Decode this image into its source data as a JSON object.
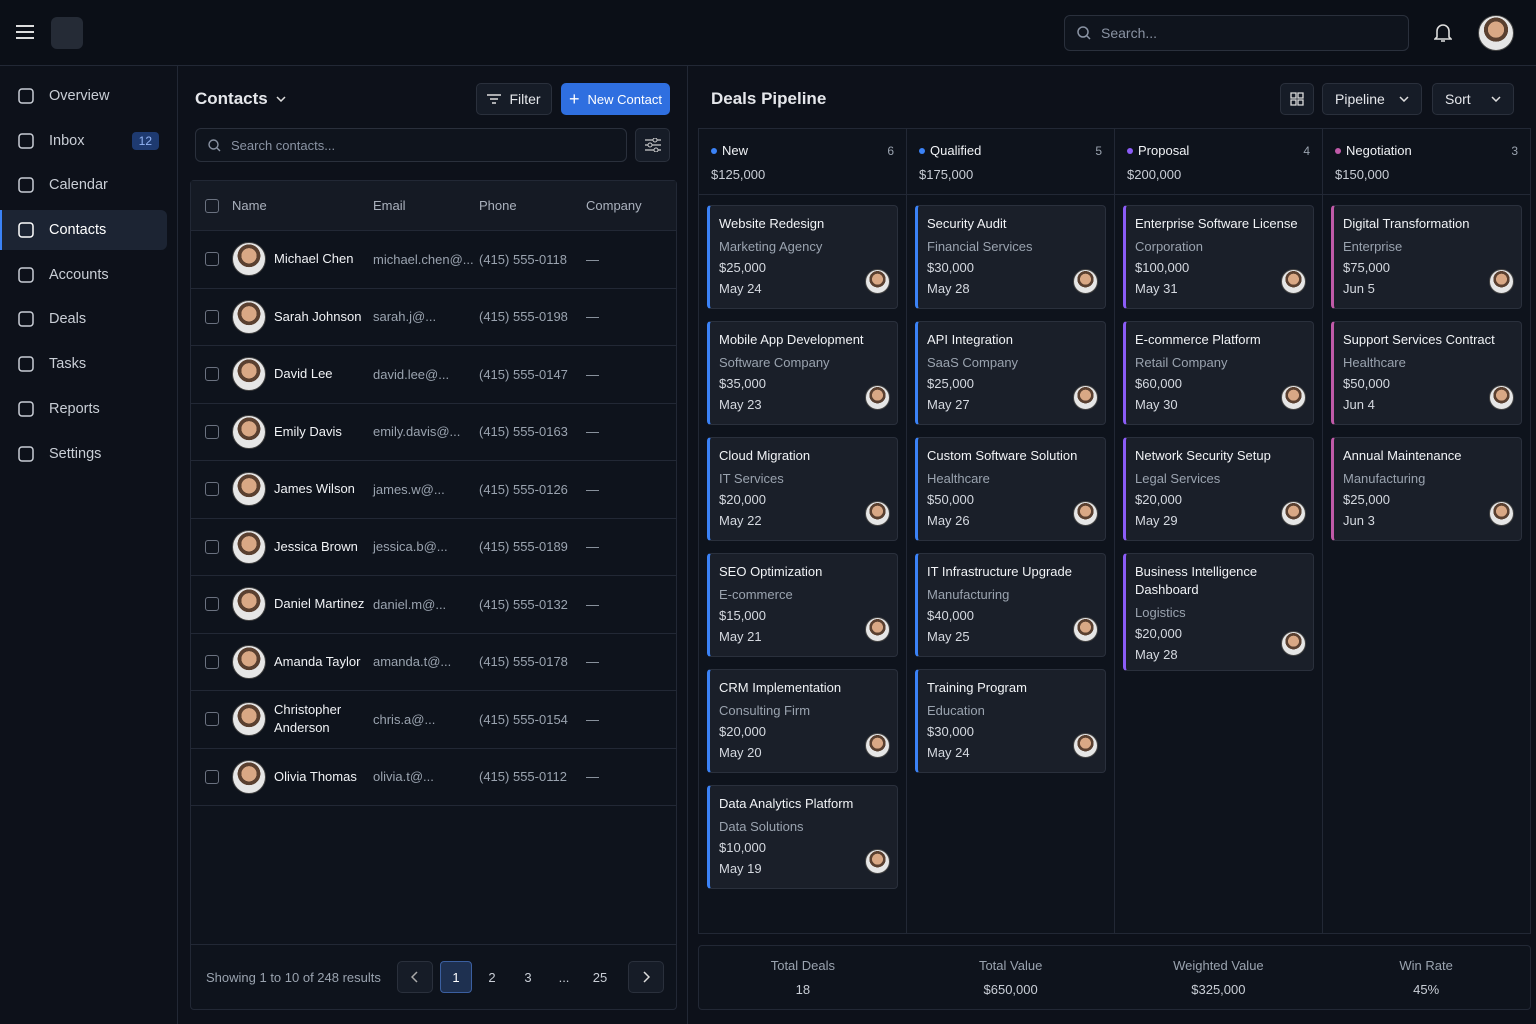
{
  "header": {
    "search_placeholder": "Search..."
  },
  "sidebar": {
    "items": [
      {
        "label": "Overview"
      },
      {
        "label": "Inbox",
        "badge": "12"
      },
      {
        "label": "Calendar"
      },
      {
        "label": "Contacts",
        "active": true
      },
      {
        "label": "Accounts"
      },
      {
        "label": "Deals"
      },
      {
        "label": "Tasks"
      },
      {
        "label": "Reports"
      },
      {
        "label": "Settings"
      }
    ]
  },
  "contacts": {
    "title": "Contacts",
    "filter": "Filter",
    "new_button": "New Contact",
    "search_placeholder": "Search contacts...",
    "columns": [
      "Name",
      "Email",
      "Phone",
      "Company"
    ],
    "rows": [
      [
        "Michael Chen",
        "michael.chen@...",
        "(415) 555-0118",
        "—"
      ],
      [
        "Sarah Johnson",
        "sarah.j@...",
        "(415) 555-0198",
        "—"
      ],
      [
        "David Lee",
        "david.lee@...",
        "(415) 555-0147",
        "—"
      ],
      [
        "Emily Davis",
        "emily.davis@...",
        "(415) 555-0163",
        "—"
      ],
      [
        "James Wilson",
        "james.w@...",
        "(415) 555-0126",
        "—"
      ],
      [
        "Jessica Brown",
        "jessica.b@...",
        "(415) 555-0189",
        "—"
      ],
      [
        "Daniel Martinez",
        "daniel.m@...",
        "(415) 555-0132",
        "—"
      ],
      [
        "Amanda Taylor",
        "amanda.t@...",
        "(415) 555-0178",
        "—"
      ],
      [
        "Christopher Anderson",
        "chris.a@...",
        "(415) 555-0154",
        "—"
      ],
      [
        "Olivia Thomas",
        "olivia.t@...",
        "(415) 555-0112",
        "—"
      ]
    ],
    "footer": "Showing 1 to 10 of 248 results",
    "pages": [
      "1",
      "2",
      "3",
      "...",
      "25"
    ],
    "current_page": "1"
  },
  "deals": {
    "title": "Deals Pipeline",
    "view": "Pipeline",
    "sort": "Sort",
    "columns": [
      {
        "name": "New",
        "count": 6,
        "total": "$125,000",
        "color": "#3b82f6",
        "cards": [
          {
            "title": "Website Redesign",
            "company": "Marketing Agency",
            "value": "$25,000",
            "date": "May 24"
          },
          {
            "title": "Mobile App Development",
            "company": "Software Company",
            "value": "$35,000",
            "date": "May 23"
          },
          {
            "title": "Cloud Migration",
            "company": "IT Services",
            "value": "$20,000",
            "date": "May 22"
          },
          {
            "title": "SEO Optimization",
            "company": "E-commerce",
            "value": "$15,000",
            "date": "May 21"
          },
          {
            "title": "CRM Implementation",
            "company": "Consulting Firm",
            "value": "$20,000",
            "date": "May 20"
          },
          {
            "title": "Data Analytics Platform",
            "company": "Data Solutions",
            "value": "$10,000",
            "date": "May 19"
          }
        ]
      },
      {
        "name": "Qualified",
        "count": 5,
        "total": "$175,000",
        "color": "#3b82f6",
        "cards": [
          {
            "title": "Security Audit",
            "company": "Financial Services",
            "value": "$30,000",
            "date": "May 28"
          },
          {
            "title": "API Integration",
            "company": "SaaS Company",
            "value": "$25,000",
            "date": "May 27"
          },
          {
            "title": "Custom Software Solution",
            "company": "Healthcare",
            "value": "$50,000",
            "date": "May 26"
          },
          {
            "title": "IT Infrastructure Upgrade",
            "company": "Manufacturing",
            "value": "$40,000",
            "date": "May 25"
          },
          {
            "title": "Training Program",
            "company": "Education",
            "value": "$30,000",
            "date": "May 24"
          }
        ]
      },
      {
        "name": "Proposal",
        "count": 4,
        "total": "$200,000",
        "color": "#8b5cf6",
        "cards": [
          {
            "title": "Enterprise Software License",
            "company": "Corporation",
            "value": "$100,000",
            "date": "May 31"
          },
          {
            "title": "E-commerce Platform",
            "company": "Retail Company",
            "value": "$60,000",
            "date": "May 30"
          },
          {
            "title": "Network Security Setup",
            "company": "Legal Services",
            "value": "$20,000",
            "date": "May 29"
          },
          {
            "title": "Business Intelligence Dashboard",
            "company": "Logistics",
            "value": "$20,000",
            "date": "May 28"
          }
        ]
      },
      {
        "name": "Negotiation",
        "count": 3,
        "total": "$150,000",
        "color": "#c05aa8",
        "cards": [
          {
            "title": "Digital Transformation",
            "company": "Enterprise",
            "value": "$75,000",
            "date": "Jun 5"
          },
          {
            "title": "Support Services Contract",
            "company": "Healthcare",
            "value": "$50,000",
            "date": "Jun 4"
          },
          {
            "title": "Annual Maintenance",
            "company": "Manufacturing",
            "value": "$25,000",
            "date": "Jun 3"
          }
        ]
      }
    ],
    "summary": [
      {
        "label": "Total Deals",
        "value": "18"
      },
      {
        "label": "Total Value",
        "value": "$650,000"
      },
      {
        "label": "Weighted Value",
        "value": "$325,000"
      },
      {
        "label": "Win Rate",
        "value": "45%"
      }
    ]
  }
}
